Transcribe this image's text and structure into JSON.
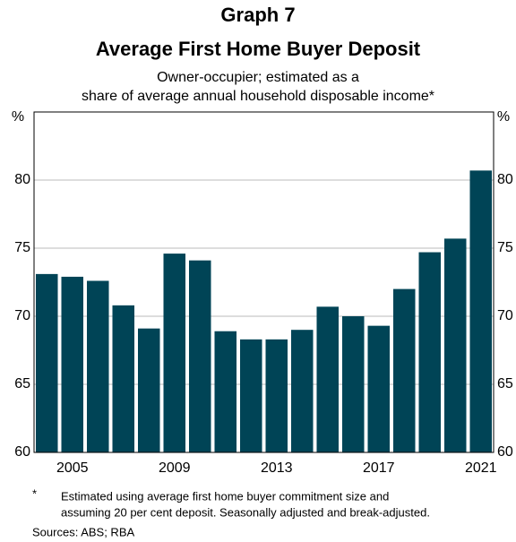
{
  "chart_data": {
    "type": "bar",
    "title": "Graph 7",
    "subtitle_main": "Average First Home Buyer Deposit",
    "subtitle": [
      "Owner-occupier; estimated as a",
      "share of average annual household disposable income*"
    ],
    "y_label": "%",
    "categories": [
      null,
      "2005",
      null,
      null,
      null,
      "2009",
      null,
      null,
      null,
      "2013",
      null,
      null,
      null,
      "2017",
      null,
      null,
      null,
      "2021"
    ],
    "values": [
      73.1,
      72.9,
      72.6,
      70.8,
      69.1,
      74.6,
      74.1,
      68.9,
      68.3,
      68.3,
      69.0,
      70.7,
      70.0,
      69.3,
      72.0,
      74.7,
      75.7,
      80.7
    ],
    "color": "#004456",
    "ylim": [
      60,
      85
    ],
    "yticks": [
      60,
      65,
      70,
      75,
      80
    ],
    "grid": true,
    "footnote_marker": "*",
    "footnote": [
      "Estimated using average first home buyer commitment size and",
      "assuming 20 per cent deposit. Seasonally adjusted and break-adjusted."
    ],
    "sources": "Sources: ABS; RBA"
  }
}
